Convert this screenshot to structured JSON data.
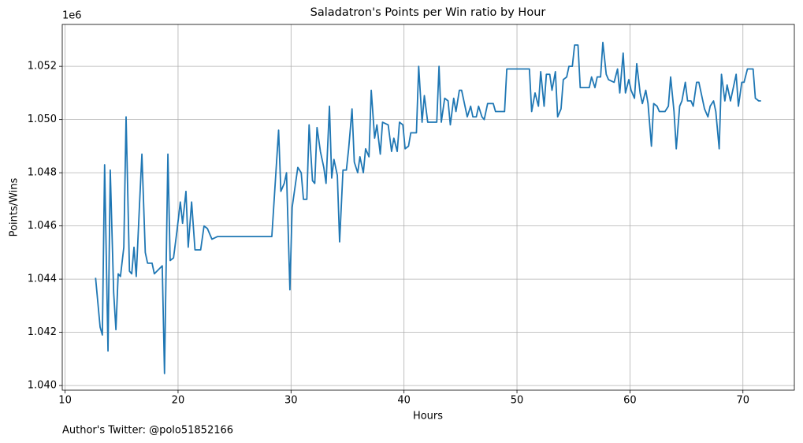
{
  "chart_data": {
    "type": "line",
    "title": "Saladatron's Points per Win ratio by Hour",
    "xlabel": "Hours",
    "ylabel": "Points/Wins",
    "y_offset_label": "1e6",
    "annotation": "Author's Twitter: @polo51852166",
    "color": "#1f77b4",
    "grid": true,
    "xlim": [
      9.75,
      74.55
    ],
    "xticks": [
      10,
      20,
      30,
      40,
      50,
      60,
      70
    ],
    "ylim": [
      1039825,
      1053575
    ],
    "yticks": [
      {
        "value": 1040000,
        "label": "1.040"
      },
      {
        "value": 1042000,
        "label": "1.042"
      },
      {
        "value": 1044000,
        "label": "1.044"
      },
      {
        "value": 1046000,
        "label": "1.046"
      },
      {
        "value": 1048000,
        "label": "1.048"
      },
      {
        "value": 1050000,
        "label": "1.050"
      },
      {
        "value": 1052000,
        "label": "1.052"
      }
    ],
    "x": [
      12.7,
      13.1,
      13.3,
      13.5,
      13.8,
      14.0,
      14.3,
      14.5,
      14.7,
      14.9,
      15.2,
      15.4,
      15.7,
      15.9,
      16.1,
      16.3,
      16.6,
      16.8,
      17.1,
      17.3,
      17.7,
      17.9,
      18.6,
      18.8,
      19.1,
      19.3,
      19.6,
      19.9,
      20.2,
      20.4,
      20.7,
      20.9,
      21.2,
      21.5,
      22.0,
      22.3,
      22.6,
      23.0,
      23.5,
      28.3,
      28.9,
      29.1,
      29.4,
      29.6,
      29.9,
      30.1,
      30.4,
      30.6,
      30.9,
      31.1,
      31.4,
      31.6,
      31.9,
      32.1,
      32.3,
      32.6,
      32.9,
      33.1,
      33.4,
      33.6,
      33.8,
      34.1,
      34.3,
      34.6,
      34.9,
      35.1,
      35.4,
      35.6,
      35.9,
      36.1,
      36.4,
      36.6,
      36.9,
      37.1,
      37.4,
      37.6,
      37.9,
      38.1,
      38.6,
      38.9,
      39.1,
      39.4,
      39.6,
      39.9,
      40.1,
      40.4,
      40.6,
      41.1,
      41.3,
      41.6,
      41.8,
      42.1,
      42.9,
      43.1,
      43.3,
      43.6,
      43.9,
      44.1,
      44.4,
      44.6,
      44.9,
      45.1,
      45.6,
      45.9,
      46.1,
      46.4,
      46.6,
      46.9,
      47.1,
      47.4,
      47.9,
      48.1,
      48.9,
      49.1,
      51.1,
      51.3,
      51.6,
      51.9,
      52.1,
      52.4,
      52.6,
      52.9,
      53.1,
      53.4,
      53.6,
      53.9,
      54.1,
      54.4,
      54.6,
      54.9,
      55.1,
      55.4,
      55.6,
      56.4,
      56.6,
      56.9,
      57.1,
      57.4,
      57.6,
      57.9,
      58.1,
      58.6,
      58.9,
      59.1,
      59.4,
      59.6,
      59.9,
      60.1,
      60.4,
      60.6,
      60.9,
      61.1,
      61.4,
      61.6,
      61.9,
      62.1,
      62.4,
      62.6,
      63.1,
      63.4,
      63.6,
      63.9,
      64.1,
      64.4,
      64.6,
      64.9,
      65.1,
      65.4,
      65.6,
      65.9,
      66.1,
      66.6,
      66.9,
      67.1,
      67.4,
      67.6,
      67.9,
      68.1,
      68.4,
      68.6,
      68.9,
      69.1,
      69.4,
      69.6,
      69.9,
      70.1,
      70.4,
      70.9,
      71.1,
      71.4,
      71.6
    ],
    "values": [
      1044050,
      1042200,
      1041900,
      1048300,
      1041300,
      1048100,
      1043500,
      1042100,
      1044200,
      1044100,
      1045200,
      1050100,
      1044300,
      1044200,
      1045200,
      1044100,
      1046900,
      1048700,
      1045000,
      1044600,
      1044600,
      1044200,
      1044500,
      1040450,
      1048700,
      1044700,
      1044800,
      1045800,
      1046900,
      1046100,
      1047300,
      1045200,
      1046900,
      1045100,
      1045100,
      1046000,
      1045900,
      1045500,
      1045600,
      1045600,
      1049600,
      1047300,
      1047600,
      1048000,
      1043600,
      1046700,
      1047600,
      1048200,
      1048000,
      1047000,
      1047000,
      1049800,
      1047700,
      1047600,
      1049700,
      1048800,
      1048200,
      1047600,
      1050500,
      1047800,
      1048500,
      1047900,
      1045400,
      1048100,
      1048100,
      1048900,
      1050400,
      1048400,
      1048000,
      1048600,
      1048000,
      1048900,
      1048600,
      1051100,
      1049300,
      1049800,
      1048700,
      1049900,
      1049800,
      1048800,
      1049300,
      1048800,
      1049900,
      1049800,
      1048900,
      1049000,
      1049500,
      1049500,
      1052000,
      1049900,
      1050900,
      1049900,
      1049900,
      1052000,
      1049900,
      1050800,
      1050700,
      1049800,
      1050800,
      1050300,
      1051100,
      1051100,
      1050100,
      1050500,
      1050100,
      1050100,
      1050500,
      1050100,
      1050000,
      1050600,
      1050600,
      1050300,
      1050300,
      1051900,
      1051900,
      1050300,
      1051000,
      1050500,
      1051800,
      1050500,
      1051700,
      1051700,
      1051100,
      1051800,
      1050100,
      1050400,
      1051500,
      1051600,
      1052000,
      1052000,
      1052800,
      1052800,
      1051200,
      1051200,
      1051600,
      1051200,
      1051600,
      1051600,
      1052900,
      1051700,
      1051500,
      1051400,
      1051900,
      1051000,
      1052500,
      1051000,
      1051500,
      1051100,
      1050800,
      1052100,
      1051000,
      1050600,
      1051100,
      1050600,
      1049000,
      1050600,
      1050500,
      1050300,
      1050300,
      1050500,
      1051600,
      1050300,
      1048900,
      1050500,
      1050700,
      1051400,
      1050700,
      1050700,
      1050500,
      1051400,
      1051400,
      1050400,
      1050100,
      1050500,
      1050700,
      1050300,
      1048900,
      1051700,
      1050700,
      1051300,
      1050700,
      1051100,
      1051700,
      1050500,
      1051400,
      1051400,
      1051900,
      1051900,
      1050800,
      1050700,
      1050700
    ]
  }
}
